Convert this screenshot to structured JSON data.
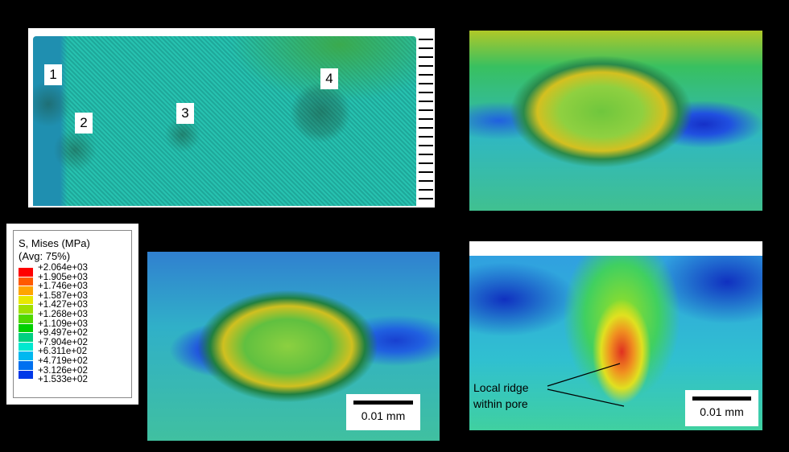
{
  "panel_a": {
    "labels": [
      "1",
      "2",
      "3",
      "4"
    ]
  },
  "legend": {
    "title": "S, Mises (MPa)",
    "subtitle": "(Avg: 75%)",
    "values": [
      "+2.064e+03",
      "+1.905e+03",
      "+1.746e+03",
      "+1.587e+03",
      "+1.427e+03",
      "+1.268e+03",
      "+1.109e+03",
      "+9.497e+02",
      "+7.904e+02",
      "+6.311e+02",
      "+4.719e+02",
      "+3.126e+02",
      "+1.533e+02"
    ],
    "colors": [
      "#ff0000",
      "#ff5a00",
      "#ffa500",
      "#e8e800",
      "#a0e000",
      "#50d800",
      "#00d000",
      "#00d080",
      "#00e8d0",
      "#00b8f0",
      "#0070f0",
      "#0038e8",
      "#0000f0"
    ]
  },
  "panel_c": {
    "scale_bar": "0.01 mm"
  },
  "panel_d": {
    "scale_bar": "0.01 mm",
    "annotation_line1": "Local ridge",
    "annotation_line2": "within pore"
  }
}
